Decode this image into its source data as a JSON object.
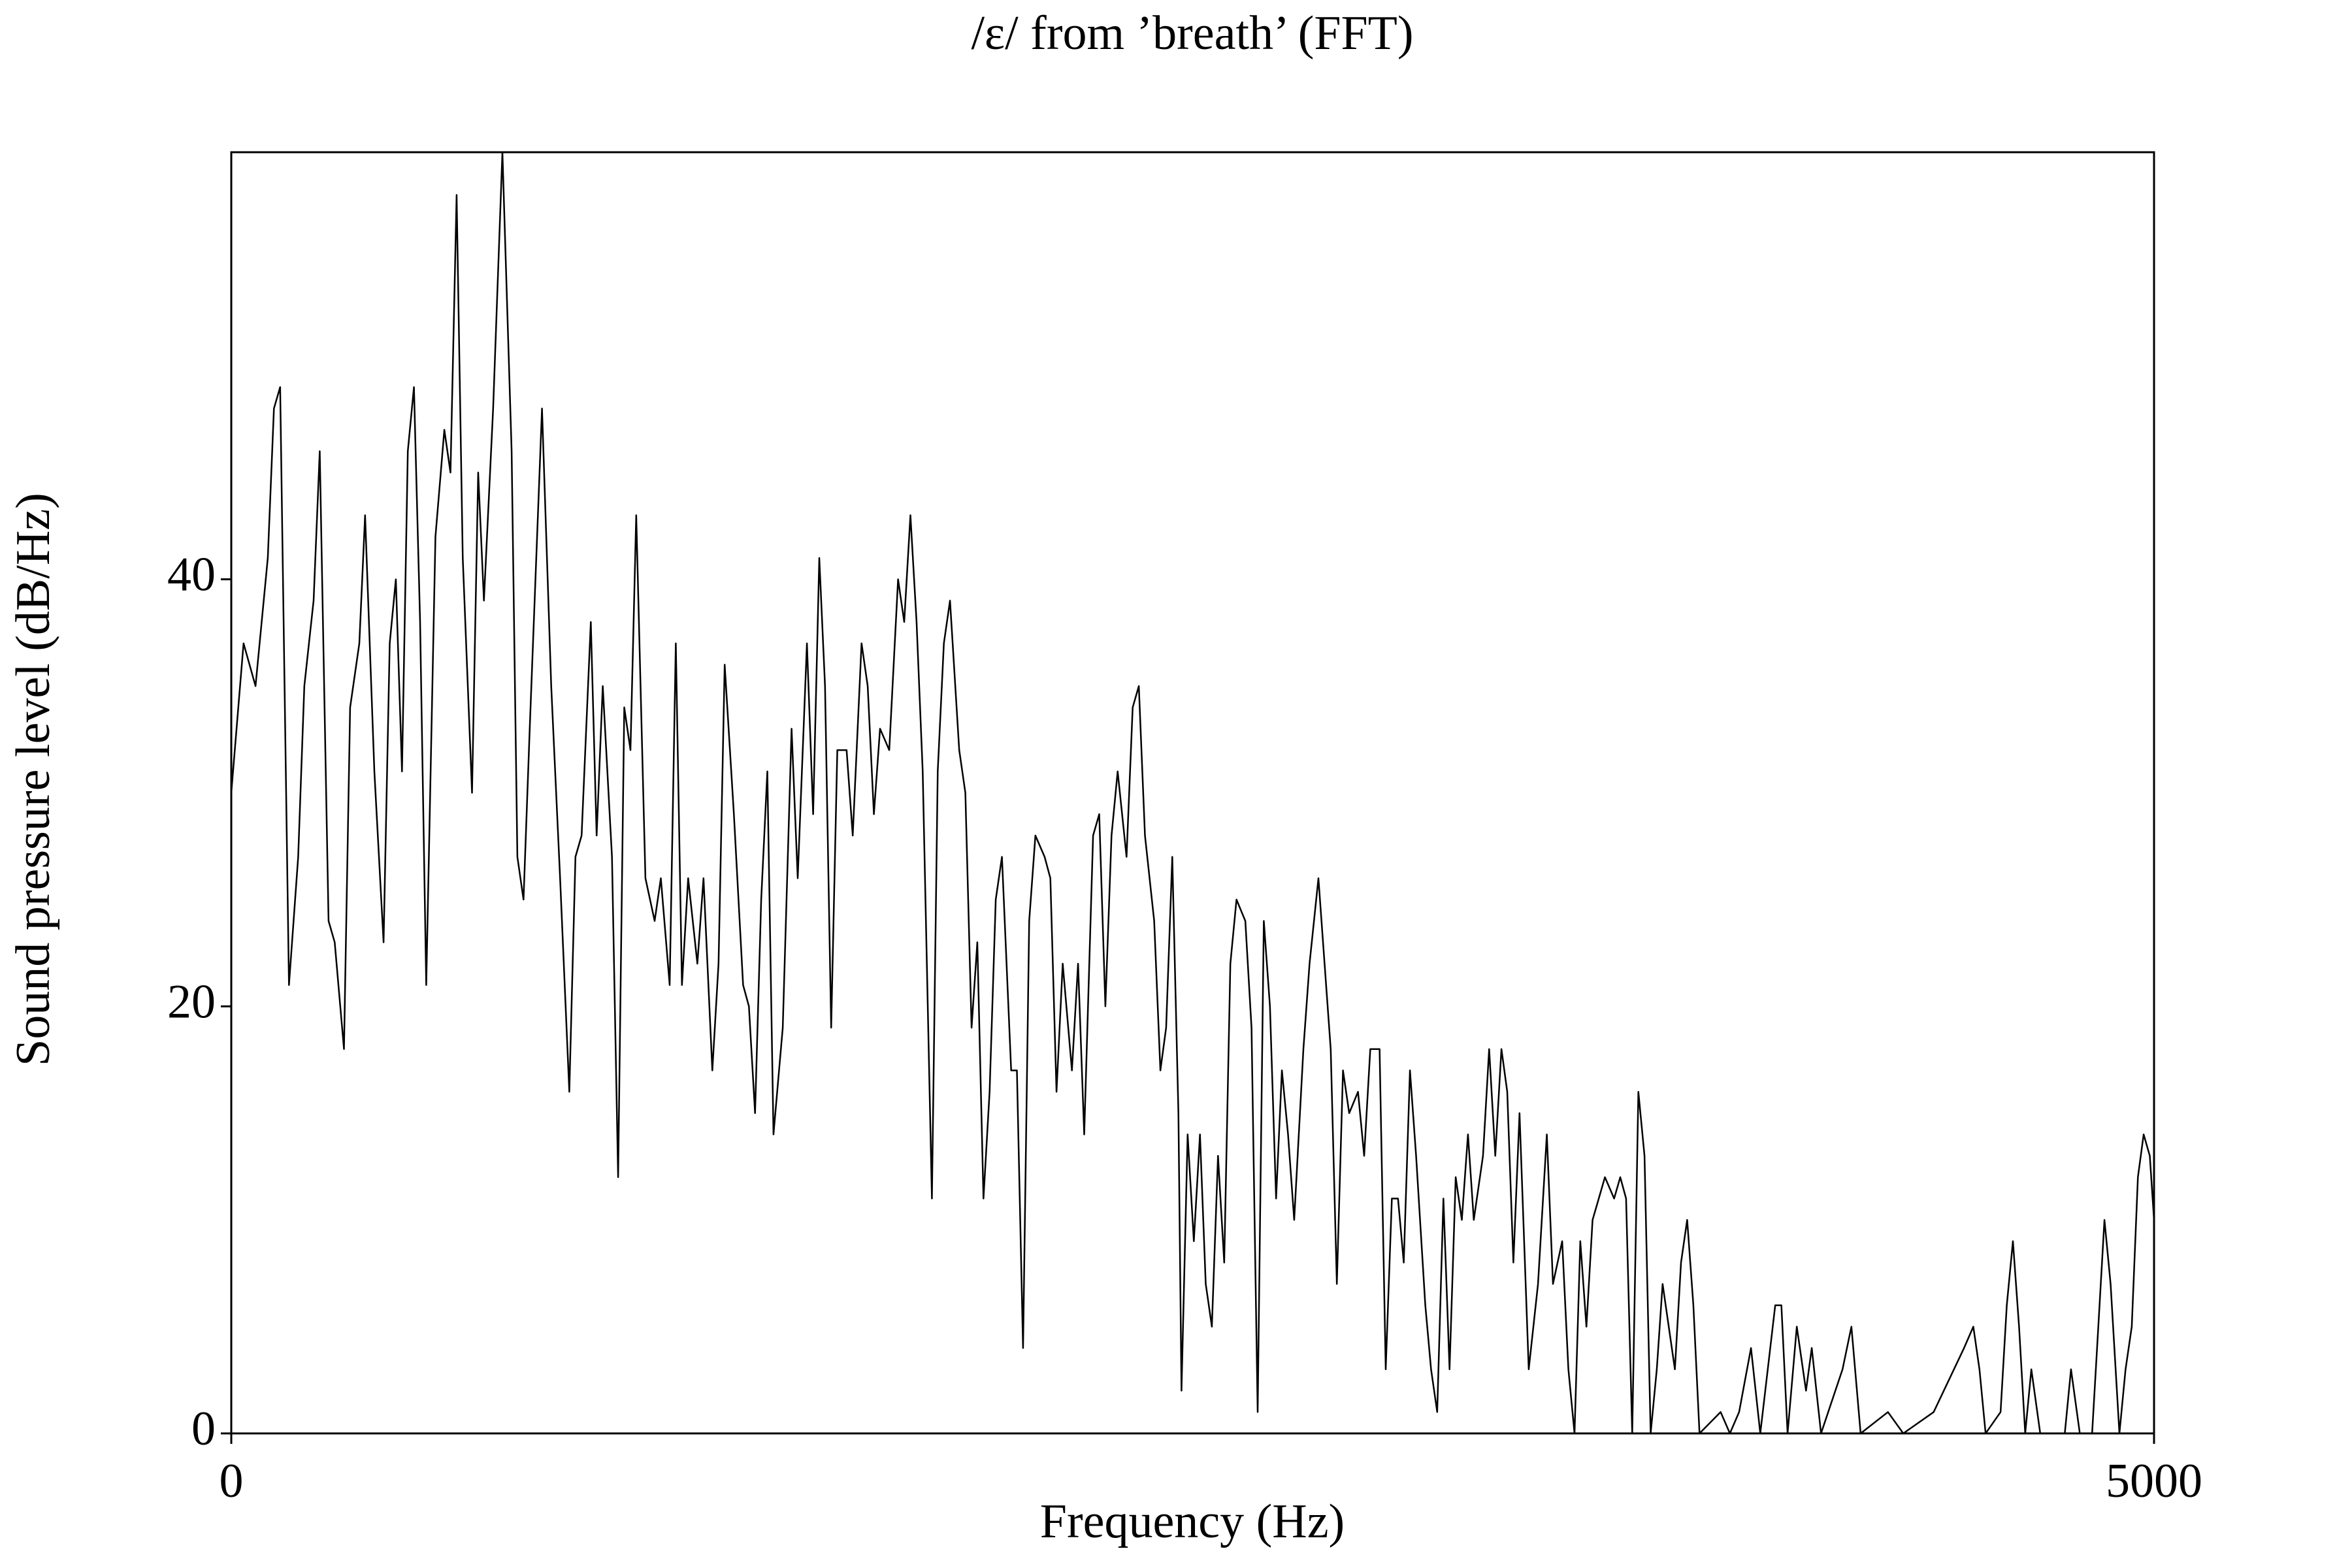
{
  "chart_data": {
    "type": "line",
    "title": "/ɛ/ from ’breath’ (FFT)",
    "xlabel": "Frequency (Hz)",
    "ylabel": "Sound pressure level (dB/Hz)",
    "xlim": [
      0,
      5000
    ],
    "xticks": [
      0,
      5000
    ],
    "ylim": [
      0,
      60
    ],
    "yticks": [
      0,
      20,
      40
    ],
    "series": [
      {
        "color": "#000000",
        "x": [
          0,
          32,
          63,
          95,
          111,
          127,
          150,
          174,
          190,
          214,
          230,
          253,
          269,
          293,
          309,
          333,
          348,
          372,
          396,
          412,
          428,
          444,
          459,
          475,
          491,
          507,
          531,
          554,
          570,
          586,
          602,
          626,
          642,
          657,
          681,
          705,
          729,
          744,
          760,
          776,
          808,
          832,
          855,
          879,
          895,
          911,
          935,
          950,
          966,
          990,
          1006,
          1022,
          1038,
          1053,
          1077,
          1101,
          1117,
          1140,
          1156,
          1172,
          1188,
          1212,
          1228,
          1251,
          1267,
          1283,
          1307,
          1331,
          1346,
          1362,
          1378,
          1394,
          1410,
          1434,
          1457,
          1473,
          1497,
          1513,
          1529,
          1544,
          1560,
          1576,
          1600,
          1616,
          1639,
          1655,
          1671,
          1687,
          1711,
          1734,
          1750,
          1766,
          1782,
          1798,
          1822,
          1837,
          1853,
          1869,
          1893,
          1909,
          1925,
          1940,
          1956,
          1972,
          1988,
          2004,
          2028,
          2043,
          2059,
          2075,
          2091,
          2115,
          2130,
          2146,
          2162,
          2186,
          2202,
          2218,
          2241,
          2257,
          2273,
          2289,
          2305,
          2328,
          2344,
          2360,
          2376,
          2400,
          2416,
          2431,
          2447,
          2463,
          2471,
          2487,
          2503,
          2519,
          2534,
          2550,
          2566,
          2582,
          2598,
          2614,
          2637,
          2653,
          2669,
          2685,
          2701,
          2717,
          2732,
          2748,
          2764,
          2788,
          2804,
          2827,
          2843,
          2859,
          2875,
          2891,
          2907,
          2930,
          2946,
          2962,
          2986,
          3002,
          3018,
          3034,
          3049,
          3065,
          3081,
          3105,
          3120,
          3136,
          3152,
          3168,
          3184,
          3200,
          3216,
          3231,
          3255,
          3271,
          3287,
          3303,
          3318,
          3334,
          3350,
          3374,
          3398,
          3421,
          3437,
          3461,
          3477,
          3493,
          3508,
          3524,
          3540,
          3556,
          3572,
          3596,
          3612,
          3627,
          3643,
          3659,
          3675,
          3691,
          3707,
          3722,
          3738,
          3754,
          3770,
          3786,
          3802,
          3818,
          3873,
          3897,
          3921,
          3952,
          3976,
          4015,
          4031,
          4047,
          4071,
          4095,
          4110,
          4134,
          4190,
          4213,
          4237,
          4308,
          4348,
          4427,
          4506,
          4530,
          4546,
          4562,
          4601,
          4617,
          4633,
          4649,
          4665,
          4681,
          4704,
          4768,
          4784,
          4807,
          4839,
          4855,
          4871,
          4887,
          4910,
          4926,
          4942,
          4958,
          4973,
          4989,
          5000
        ],
        "values": [
          30,
          37,
          35,
          41,
          48,
          49,
          21,
          27,
          35,
          39,
          46,
          24,
          23,
          18,
          34,
          37,
          43,
          31,
          23,
          37,
          40,
          31,
          46,
          49,
          38,
          21,
          42,
          47,
          45,
          58,
          41,
          30,
          45,
          39,
          48,
          60,
          46,
          27,
          25,
          33,
          48,
          35,
          26,
          16,
          27,
          28,
          38,
          28,
          35,
          27,
          12,
          34,
          32,
          43,
          26,
          24,
          26,
          21,
          37,
          21,
          26,
          22,
          26,
          17,
          22,
          36,
          29,
          21,
          20,
          15,
          25,
          31,
          14,
          19,
          33,
          26,
          37,
          29,
          41,
          35,
          19,
          32,
          32,
          28,
          37,
          35,
          29,
          33,
          32,
          40,
          38,
          43,
          38,
          31,
          11,
          31,
          37,
          39,
          32,
          30,
          19,
          23,
          11,
          16,
          25,
          27,
          17,
          17,
          4,
          24,
          28,
          27,
          26,
          16,
          22,
          17,
          22,
          14,
          28,
          29,
          20,
          28,
          31,
          27,
          34,
          35,
          28,
          24,
          17,
          19,
          27,
          15,
          2,
          14,
          9,
          14,
          7,
          5,
          13,
          8,
          22,
          25,
          24,
          19,
          1,
          24,
          20,
          11,
          17,
          14,
          10,
          18,
          22,
          26,
          22,
          18,
          7,
          17,
          15,
          16,
          13,
          18,
          18,
          3,
          11,
          11,
          8,
          17,
          13,
          6,
          3,
          1,
          11,
          3,
          12,
          10,
          14,
          10,
          13,
          18,
          13,
          18,
          16,
          8,
          15,
          3,
          7,
          14,
          7,
          9,
          3,
          0,
          9,
          5,
          10,
          11,
          12,
          11,
          12,
          11,
          0,
          16,
          13,
          0,
          3,
          7,
          5,
          3,
          8,
          10,
          6,
          0,
          1,
          0,
          1,
          4,
          0,
          6,
          6,
          0,
          5,
          2,
          4,
          0,
          3,
          5,
          0,
          1,
          0,
          1,
          4,
          5,
          3,
          0,
          1,
          6,
          9,
          5,
          0,
          3,
          0,
          0,
          3,
          0,
          0,
          5,
          10,
          7,
          0,
          3,
          5,
          12,
          14,
          13,
          10
        ]
      }
    ]
  }
}
